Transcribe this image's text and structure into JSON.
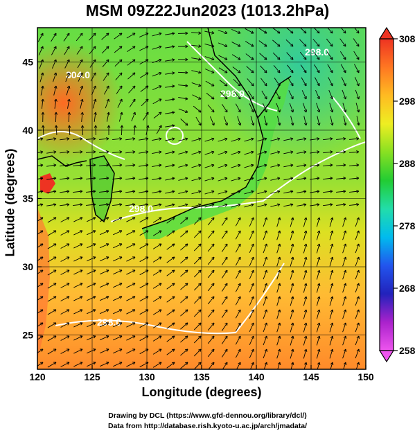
{
  "title": "MSM 09Z22Jun2023 (1013.2hPa)",
  "xlabel": "Longitude (degrees)",
  "ylabel": "Latitude  (degrees)",
  "credits": {
    "line1": "Drawing by DCL (https://www.gfd-dennou.org/library/dcl/)",
    "line2": "Data from http://database.rish.kyoto-u.ac.jp/arch/jmadata/"
  },
  "map": {
    "lon_range": [
      120,
      150
    ],
    "lat_range": [
      22.5,
      47.5
    ],
    "lon_ticks": [
      "120",
      "125",
      "130",
      "135",
      "140",
      "145",
      "150"
    ],
    "lat_ticks": [
      "25",
      "30",
      "35",
      "40",
      "45"
    ],
    "contour_labels": [
      "304.0",
      "298.0",
      "298.0",
      "298.0",
      "298.0"
    ]
  },
  "colorbar": {
    "min": 258,
    "max": 308,
    "tick_labels": [
      "308",
      "298",
      "288",
      "278",
      "268",
      "258"
    ],
    "colors": [
      "#ee55ee",
      "#aa22cc",
      "#2222bb",
      "#2255ee",
      "#00bbee",
      "#22ddaa",
      "#22cc33",
      "#88e022",
      "#eeee22",
      "#ffbb22",
      "#ff7722",
      "#ee3322"
    ]
  }
}
